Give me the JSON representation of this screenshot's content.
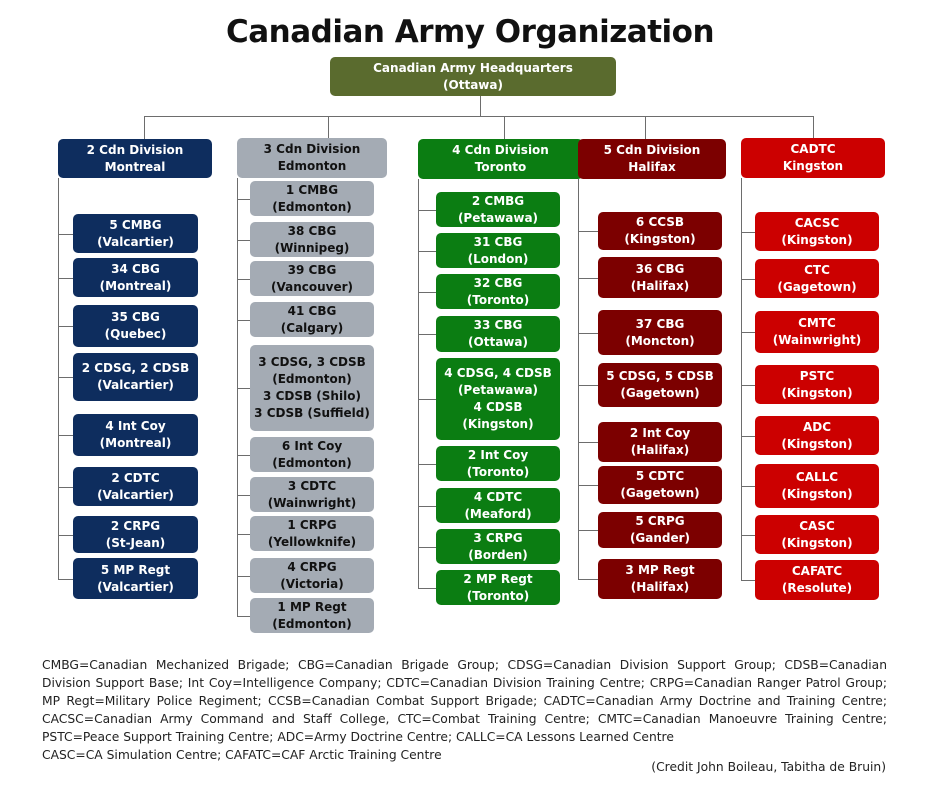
{
  "title": "Canadian Army Organization",
  "hq": {
    "line1": "Canadian Army Headquarters",
    "line2": "(Ottawa)"
  },
  "divisions": [
    {
      "line1": "2 Cdn Division",
      "line2": "Montreal",
      "color": "#0e2d5e",
      "units": [
        [
          "5 CMBG",
          "(Valcartier)"
        ],
        [
          "34 CBG",
          "(Montreal)"
        ],
        [
          "35 CBG",
          "(Quebec)"
        ],
        [
          "2 CDSG, 2 CDSB",
          "(Valcartier)"
        ],
        [
          "4 Int Coy",
          "(Montreal)"
        ],
        [
          "2 CDTC",
          "(Valcartier)"
        ],
        [
          "2 CRPG",
          "(St-Jean)"
        ],
        [
          "5 MP Regt",
          "(Valcartier)"
        ]
      ]
    },
    {
      "line1": "3 Cdn Division",
      "line2": "Edmonton",
      "color": "#a4abb4",
      "units": [
        [
          "1 CMBG",
          "(Edmonton)"
        ],
        [
          "38 CBG",
          "(Winnipeg)"
        ],
        [
          "39 CBG",
          "(Vancouver)"
        ],
        [
          "41 CBG",
          "(Calgary)"
        ],
        [
          "3 CDSG, 3 CDSB",
          "(Edmonton)",
          "3 CDSB (Shilo)",
          "3 CDSB (Suffield)"
        ],
        [
          "6 Int Coy",
          "(Edmonton)"
        ],
        [
          "3 CDTC",
          "(Wainwright)"
        ],
        [
          "1 CRPG",
          "(Yellowknife)"
        ],
        [
          "4 CRPG",
          "(Victoria)"
        ],
        [
          "1 MP Regt",
          "(Edmonton)"
        ]
      ]
    },
    {
      "line1": "4 Cdn Division",
      "line2": "Toronto",
      "color": "#0b7d12",
      "units": [
        [
          "2 CMBG",
          "(Petawawa)"
        ],
        [
          "31 CBG",
          "(London)"
        ],
        [
          "32 CBG",
          "(Toronto)"
        ],
        [
          "33 CBG",
          "(Ottawa)"
        ],
        [
          "4 CDSG, 4 CDSB",
          "(Petawawa)",
          "4 CDSB",
          "(Kingston)"
        ],
        [
          "2 Int Coy",
          "(Toronto)"
        ],
        [
          "4 CDTC",
          "(Meaford)"
        ],
        [
          "3 CRPG",
          "(Borden)"
        ],
        [
          "2 MP Regt",
          "(Toronto)"
        ]
      ]
    },
    {
      "line1": "5 Cdn Division",
      "line2": "Halifax",
      "color": "#7c0000",
      "units": [
        [
          "6 CCSB",
          "(Kingston)"
        ],
        [
          "36 CBG",
          "(Halifax)"
        ],
        [
          "37 CBG",
          "(Moncton)"
        ],
        [
          "5 CDSG, 5 CDSB",
          "(Gagetown)"
        ],
        [
          "2 Int Coy",
          "(Halifax)"
        ],
        [
          "5 CDTC",
          "(Gagetown)"
        ],
        [
          "5 CRPG",
          "(Gander)"
        ],
        [
          "3 MP Regt",
          "(Halifax)"
        ]
      ]
    },
    {
      "line1": "CADTC",
      "line2": "Kingston",
      "color": "#cc0000",
      "units": [
        [
          "CACSC",
          "(Kingston)"
        ],
        [
          "CTC",
          "(Gagetown)"
        ],
        [
          "CMTC",
          "(Wainwright)"
        ],
        [
          "PSTC",
          "(Kingston)"
        ],
        [
          "ADC",
          "(Kingston)"
        ],
        [
          "CALLC",
          "(Kingston)"
        ],
        [
          "CASC",
          "(Kingston)"
        ],
        [
          "CAFATC",
          "(Resolute)"
        ]
      ]
    }
  ],
  "legend": "CMBG=Canadian Mechanized Brigade; CBG=Canadian Brigade Group; CDSG=Canadian Division Support Group; CDSB=Canadian Division Support Base; Int Coy=Intelligence Company; CDTC=Canadian Division Training Centre; CRPG=Canadian Ranger Patrol Group; MP Regt=Military Police Regiment; CCSB=Canadian Combat Support Brigade; CADTC=Canadian Army Doctrine and Training Centre; CACSC=Canadian Army Command and Staff College, CTC=Combat Training Centre; CMTC=Canadian Manoeuvre Training Centre; PSTC=Peace Support Training Centre; ADC=Army Doctrine Centre; CALLC=CA Lessons Learned Centre",
  "legend_last": "CASC=CA Simulation Centre; CAFATC=CAF Arctic Training Centre",
  "credit": "(Credit John Boileau, Tabitha de Bruin)"
}
